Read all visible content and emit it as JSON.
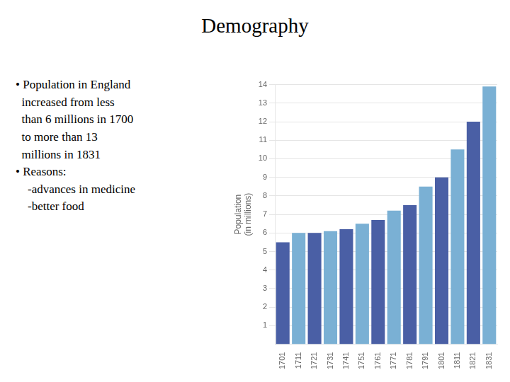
{
  "chart_data": {
    "type": "bar",
    "title": "Demography",
    "annotations": [
      "• Population in England",
      "  increased from less",
      "  than 6 millions in 1700",
      "  to more than 13",
      "  millions in 1831",
      "• Reasons:",
      "    -advances in medicine",
      "    -better food"
    ],
    "categories": [
      "1701",
      "1711",
      "1721",
      "1731",
      "1741",
      "1751",
      "1761",
      "1771",
      "1781",
      "1791",
      "1801",
      "1811",
      "1821",
      "1831"
    ],
    "values": [
      5.5,
      6.0,
      6.0,
      6.1,
      6.2,
      6.5,
      6.7,
      7.2,
      7.5,
      8.5,
      9.0,
      10.5,
      12.0,
      13.9
    ],
    "colors": [
      "#4a5fa5",
      "#7ab0d4",
      "#4a5fa5",
      "#7ab0d4",
      "#4a5fa5",
      "#7ab0d4",
      "#4a5fa5",
      "#7ab0d4",
      "#4a5fa5",
      "#7ab0d4",
      "#4a5fa5",
      "#7ab0d4",
      "#4a5fa5",
      "#7ab0d4"
    ],
    "ylabel": "Population\n(in millions)",
    "ylim": [
      0,
      14
    ],
    "yticks": [
      1,
      2,
      3,
      4,
      5,
      6,
      7,
      8,
      9,
      10,
      11,
      12,
      13,
      14
    ],
    "grid": true
  }
}
